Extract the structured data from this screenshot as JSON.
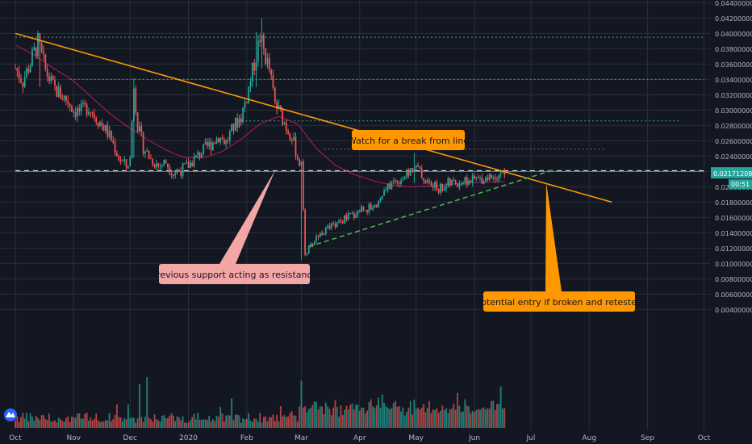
{
  "chart_data": {
    "type": "candlestick",
    "title": "",
    "xlabel": "",
    "ylabel": "",
    "ylim": [
      0.0033,
      0.0458
    ],
    "y_ticks": [
      0.004,
      0.006,
      0.008,
      0.01,
      0.012,
      0.014,
      0.016,
      0.018,
      0.02,
      0.022,
      0.024,
      0.026,
      0.028,
      0.03,
      0.032,
      0.034,
      0.036,
      0.038,
      0.04,
      0.042,
      0.044
    ],
    "y_tick_labels": [
      "0.00400000",
      "0.00600000",
      "0.00800000",
      "0.01000000",
      "0.01200000",
      "0.01400000",
      "0.01600000",
      "0.01800000",
      "0.02000000",
      "0.02200000",
      "0.02400000",
      "0.02600000",
      "0.02800000",
      "0.03000000",
      "0.03200000",
      "0.03400000",
      "0.03600000",
      "0.03800000",
      "0.04000000",
      "0.04200000",
      "0.04400000"
    ],
    "x_ticks": [
      {
        "label": "Oct",
        "day": 0
      },
      {
        "label": "Nov",
        "day": 31
      },
      {
        "label": "Dec",
        "day": 61
      },
      {
        "label": "2020",
        "day": 92
      },
      {
        "label": "Feb",
        "day": 123
      },
      {
        "label": "Mar",
        "day": 152
      },
      {
        "label": "Apr",
        "day": 183
      },
      {
        "label": "May",
        "day": 213
      },
      {
        "label": "Jun",
        "day": 244
      },
      {
        "label": "Jul",
        "day": 274
      },
      {
        "label": "Aug",
        "day": 305
      },
      {
        "label": "Sep",
        "day": 336
      },
      {
        "label": "Oct",
        "day": 366
      }
    ],
    "price_path": [
      [
        0,
        0.0355
      ],
      [
        4,
        0.0338
      ],
      [
        8,
        0.0362
      ],
      [
        12,
        0.0388
      ],
      [
        16,
        0.0352
      ],
      [
        20,
        0.033
      ],
      [
        24,
        0.032
      ],
      [
        28,
        0.0312
      ],
      [
        31,
        0.03
      ],
      [
        35,
        0.0298
      ],
      [
        39,
        0.0305
      ],
      [
        43,
        0.029
      ],
      [
        47,
        0.0278
      ],
      [
        51,
        0.0262
      ],
      [
        55,
        0.0238
      ],
      [
        59,
        0.0226
      ],
      [
        61,
        0.0236
      ],
      [
        63,
        0.0335
      ],
      [
        65,
        0.028
      ],
      [
        68,
        0.0252
      ],
      [
        72,
        0.0236
      ],
      [
        76,
        0.0228
      ],
      [
        80,
        0.0232
      ],
      [
        84,
        0.0218
      ],
      [
        88,
        0.0222
      ],
      [
        92,
        0.0228
      ],
      [
        96,
        0.0238
      ],
      [
        100,
        0.0248
      ],
      [
        104,
        0.0256
      ],
      [
        108,
        0.0266
      ],
      [
        112,
        0.0258
      ],
      [
        116,
        0.0278
      ],
      [
        120,
        0.0292
      ],
      [
        123,
        0.0318
      ],
      [
        126,
        0.035
      ],
      [
        128,
        0.0372
      ],
      [
        130,
        0.0395
      ],
      [
        132,
        0.0378
      ],
      [
        135,
        0.0352
      ],
      [
        138,
        0.0308
      ],
      [
        141,
        0.0295
      ],
      [
        144,
        0.0278
      ],
      [
        147,
        0.0266
      ],
      [
        150,
        0.0238
      ],
      [
        152,
        0.0226
      ],
      [
        154,
        0.0115
      ],
      [
        156,
        0.0118
      ],
      [
        160,
        0.0135
      ],
      [
        164,
        0.0142
      ],
      [
        168,
        0.0148
      ],
      [
        172,
        0.0152
      ],
      [
        176,
        0.016
      ],
      [
        180,
        0.0164
      ],
      [
        184,
        0.0172
      ],
      [
        188,
        0.0172
      ],
      [
        192,
        0.0178
      ],
      [
        196,
        0.0192
      ],
      [
        200,
        0.0205
      ],
      [
        204,
        0.021
      ],
      [
        208,
        0.0214
      ],
      [
        212,
        0.0228
      ],
      [
        214,
        0.0222
      ],
      [
        218,
        0.0208
      ],
      [
        222,
        0.02
      ],
      [
        226,
        0.0198
      ],
      [
        230,
        0.0204
      ],
      [
        234,
        0.0205
      ],
      [
        238,
        0.0207
      ],
      [
        242,
        0.0208
      ],
      [
        246,
        0.021
      ],
      [
        250,
        0.0212
      ],
      [
        254,
        0.0214
      ],
      [
        258,
        0.0218
      ],
      [
        260,
        0.0217
      ]
    ],
    "spike_candles": [
      {
        "day": 13,
        "high": 0.0396,
        "low": 0.033
      },
      {
        "day": 63,
        "high": 0.0342,
        "low": 0.0238
      },
      {
        "day": 128,
        "high": 0.0402,
        "low": 0.033
      },
      {
        "day": 131,
        "high": 0.042,
        "low": 0.0355
      },
      {
        "day": 152,
        "high": 0.023,
        "low": 0.0105
      },
      {
        "day": 212,
        "high": 0.0244,
        "low": 0.0205
      }
    ],
    "volume_ylim": [
      0,
      0.0085
    ],
    "volume_spikes": [
      {
        "day": 70,
        "value": 0.007
      },
      {
        "day": 66,
        "value": 0.006
      },
      {
        "day": 152,
        "value": 0.0065
      },
      {
        "day": 258,
        "value": 0.0057
      },
      {
        "day": 235,
        "value": 0.0048
      }
    ],
    "moving_average": [
      [
        0,
        0.0385
      ],
      [
        10,
        0.0372
      ],
      [
        20,
        0.0355
      ],
      [
        30,
        0.034
      ],
      [
        40,
        0.0318
      ],
      [
        50,
        0.0296
      ],
      [
        60,
        0.0278
      ],
      [
        70,
        0.0262
      ],
      [
        80,
        0.0248
      ],
      [
        90,
        0.0238
      ],
      [
        100,
        0.0238
      ],
      [
        110,
        0.0246
      ],
      [
        120,
        0.0262
      ],
      [
        130,
        0.0282
      ],
      [
        140,
        0.0292
      ],
      [
        150,
        0.0282
      ],
      [
        160,
        0.025
      ],
      [
        170,
        0.0228
      ],
      [
        180,
        0.0216
      ],
      [
        190,
        0.0208
      ],
      [
        200,
        0.0202
      ],
      [
        210,
        0.02
      ],
      [
        220,
        0.0201
      ],
      [
        230,
        0.0203
      ],
      [
        240,
        0.0205
      ],
      [
        250,
        0.0206
      ],
      [
        260,
        0.0207
      ]
    ],
    "resistance_trendline": [
      [
        0,
        0.04
      ],
      [
        317,
        0.018
      ]
    ],
    "support_trendline": [
      [
        156,
        0.0122
      ],
      [
        286,
        0.0222
      ]
    ],
    "horizontal_levels": [
      {
        "value": 0.0395,
        "from": 0,
        "to": 366,
        "color": "#26a69a",
        "style": "dotted"
      },
      {
        "value": 0.034,
        "from": 29,
        "to": 366,
        "color": "#26a69a",
        "style": "dotted"
      },
      {
        "value": 0.0286,
        "from": 118,
        "to": 353,
        "color": "#26a69a",
        "style": "dotted"
      },
      {
        "value": 0.0249,
        "from": 164,
        "to": 314,
        "color": "#e0463e",
        "style": "dotted"
      },
      {
        "value": 0.0221,
        "from": 0,
        "to": 366,
        "color": "#e8e8e8",
        "style": "dashed"
      },
      {
        "value": 0.022,
        "from": 0,
        "to": 366,
        "color": "#26a69a",
        "style": "solid"
      }
    ],
    "annotations": [
      {
        "text": "Watch for a break from line",
        "bg": "#ff9800",
        "fg": "#131722",
        "point_day": 206,
        "point_value": 0.0262
      },
      {
        "text": "Previous support acting as resistance",
        "bg": "#f4a6a6",
        "fg": "#131722",
        "point_day": 138,
        "point_value": 0.0221
      },
      {
        "text": "Potential entry if broken and retested",
        "bg": "#ff9800",
        "fg": "#131722",
        "point_day": 282,
        "point_value": 0.0206
      }
    ],
    "current_price": {
      "label": "0.02171208",
      "value": 0.02171208,
      "color": "#26a69a"
    },
    "countdown": {
      "label": "00:51"
    },
    "colors": {
      "up": "#26a69a",
      "down": "#ef5350",
      "grid": "#2a2e39",
      "axis_text": "#b2b5be",
      "ma": "#c2185b",
      "resistance": "#ff9800",
      "support": "#4caf50"
    }
  }
}
